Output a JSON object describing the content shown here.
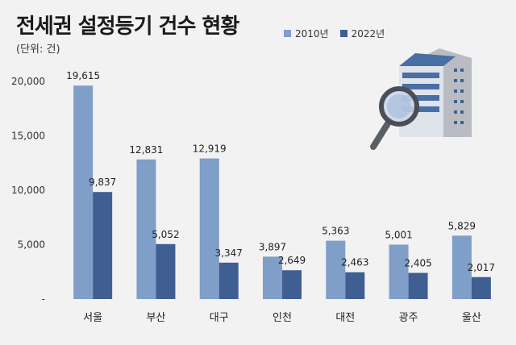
{
  "title": "전세권 설정등기 건수 현황",
  "unit": "(단위: 건)",
  "legend": [
    {
      "label": "2010년",
      "color": "#7f9ec8"
    },
    {
      "label": "2022년",
      "color": "#3f5f92"
    }
  ],
  "chart_data": {
    "type": "bar",
    "title": "전세권 설정등기 건수 현황",
    "ylabel": "(단위: 건)",
    "categories": [
      "서울",
      "부산",
      "대구",
      "인천",
      "대전",
      "광주",
      "울산"
    ],
    "series": [
      {
        "name": "2010년",
        "values": [
          19615,
          12831,
          12919,
          3897,
          5363,
          5001,
          5829
        ],
        "labels": [
          "19,615",
          "12,831",
          "12,919",
          "3,897",
          "5,363",
          "5,001",
          "5,829"
        ]
      },
      {
        "name": "2022년",
        "values": [
          9837,
          5052,
          3347,
          2649,
          2463,
          2405,
          2017
        ],
        "labels": [
          "9,837",
          "5,052",
          "3,347",
          "2,649",
          "2,463",
          "2,405",
          "2,017"
        ]
      }
    ],
    "ylim": [
      0,
      20000
    ],
    "yticks": [
      0,
      5000,
      10000,
      15000,
      20000
    ],
    "ytick_labels": [
      "-",
      "5,000",
      "10,000",
      "15,000",
      "20,000"
    ],
    "grid": false,
    "legend_position": "top-right"
  }
}
